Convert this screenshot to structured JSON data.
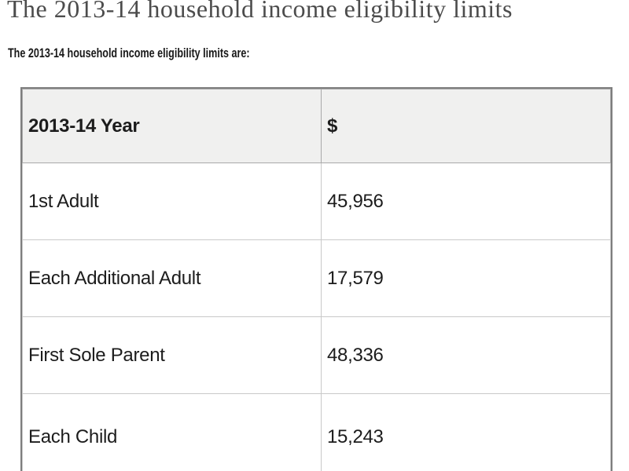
{
  "page": {
    "title": "The 2013-14 household income eligibility limits",
    "intro": "The 2013-14 household income eligibility limits are:"
  },
  "table": {
    "columns": [
      "2013-14 Year",
      "$"
    ],
    "rows": [
      {
        "label": "1st Adult",
        "amount": "45,956"
      },
      {
        "label": "Each Additional Adult",
        "amount": "17,579"
      },
      {
        "label": "First Sole Parent",
        "amount": "48,336"
      },
      {
        "label": "Each Child",
        "amount": "15,243"
      }
    ]
  },
  "colors": {
    "heading_text": "#4c4c4c",
    "body_text": "#1c1c1c",
    "header_row_bg": "#f0f0ef",
    "outer_border": "#7e7e7e",
    "header_border": "#a9a9a9",
    "row_border": "#c9c9c9",
    "background": "#ffffff"
  }
}
